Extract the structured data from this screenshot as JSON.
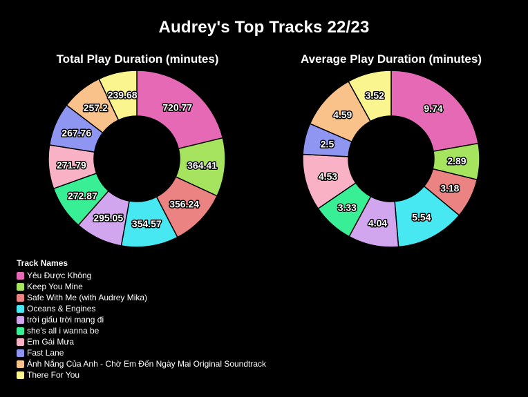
{
  "title": "Audrey's Top Tracks 22/23",
  "legend": {
    "title": "Track Names",
    "placement": "bottom-left"
  },
  "colors": [
    "#e569b5",
    "#a6e45f",
    "#ea8382",
    "#47e8f2",
    "#d2a6ef",
    "#39ef95",
    "#f9b2c5",
    "#8f96f2",
    "#f9c28a",
    "#faf58e"
  ],
  "chart_data": [
    {
      "type": "pie",
      "variant": "donut",
      "title": "Total Play Duration (minutes)",
      "categories": [
        "Yêu Được Không",
        "Keep You Mine",
        "Safe With Me (with Audrey Mika)",
        "Oceans & Engines",
        "trời giấu trời mang đi",
        "she's all i wanna be",
        "Em Gái Mưa",
        "Fast Lane",
        "Ánh Nắng Của Anh - Chờ Em Đến Ngày Mai Original Soundtrack",
        "There For You"
      ],
      "values": [
        720.77,
        364.41,
        356.24,
        354.57,
        295.05,
        272.87,
        271.79,
        267.76,
        257.2,
        239.68
      ],
      "labels": [
        "720.77",
        "364.41",
        "356.24",
        "354.57",
        "295.05",
        "272.87",
        "271.79",
        "267.76",
        "257.2",
        "239.68"
      ]
    },
    {
      "type": "pie",
      "variant": "donut",
      "title": "Average Play Duration (minutes)",
      "categories": [
        "Yêu Được Không",
        "Keep You Mine",
        "Safe With Me (with Audrey Mika)",
        "Oceans & Engines",
        "trời giấu trời mang đi",
        "she's all i wanna be",
        "Em Gái Mưa",
        "Fast Lane",
        "Ánh Nắng Của Anh - Chờ Em Đến Ngày Mai Original Soundtrack",
        "There For You"
      ],
      "values": [
        9.74,
        2.89,
        3.18,
        5.54,
        4.04,
        3.33,
        4.53,
        2.5,
        4.59,
        3.52
      ],
      "labels": [
        "9.74",
        "2.89",
        "3.18",
        "5.54",
        "4.04",
        "3.33",
        "4.53",
        "2.5",
        "4.59",
        "3.52"
      ]
    }
  ]
}
